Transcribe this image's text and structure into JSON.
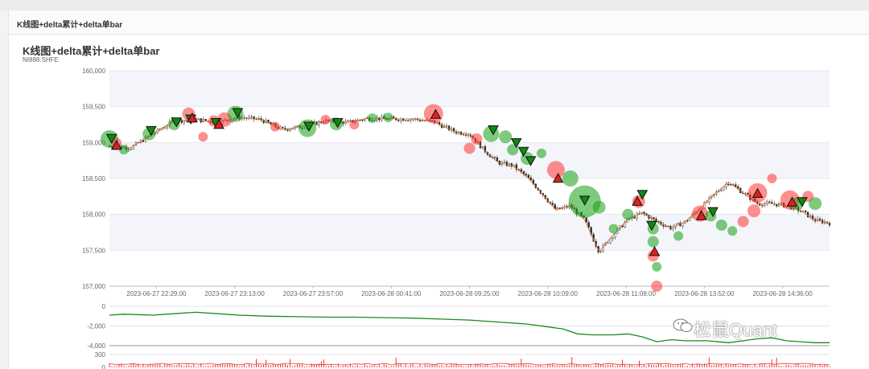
{
  "panel": {
    "title": "K线图+delta累计+delta单bar"
  },
  "chart_data": [
    {
      "type": "candlestick",
      "title": "K线图+delta累计+delta单bar",
      "subtitle": "NI888.SHFE",
      "ylim": [
        157000,
        160000
      ],
      "yticks": [
        "160,000",
        "159,500",
        "159,000",
        "158,500",
        "158,000",
        "157,500",
        "157,000"
      ],
      "xticks": [
        "2023-06-27 22:29:00",
        "2023-06-27 23:13:00",
        "2023-06-27 23:57:00",
        "2023-06-28 00:41:00",
        "2023-06-28 09:25:00",
        "2023-06-28 10:09:00",
        "2023-06-28 11:08:00",
        "2023-06-28 13:52:00",
        "2023-06-28 14:36:00"
      ],
      "price_path": [
        [
          0,
          158950
        ],
        [
          0.03,
          158930
        ],
        [
          0.06,
          159120
        ],
        [
          0.09,
          159300
        ],
        [
          0.12,
          159320
        ],
        [
          0.15,
          159280
        ],
        [
          0.18,
          159350
        ],
        [
          0.21,
          159320
        ],
        [
          0.24,
          159180
        ],
        [
          0.27,
          159230
        ],
        [
          0.3,
          159300
        ],
        [
          0.33,
          159280
        ],
        [
          0.36,
          159340
        ],
        [
          0.39,
          159330
        ],
        [
          0.42,
          159330
        ],
        [
          0.45,
          159290
        ],
        [
          0.48,
          159150
        ],
        [
          0.5,
          159120
        ],
        [
          0.52,
          158900
        ],
        [
          0.54,
          158720
        ],
        [
          0.56,
          158680
        ],
        [
          0.58,
          158520
        ],
        [
          0.6,
          158300
        ],
        [
          0.62,
          158060
        ],
        [
          0.64,
          158120
        ],
        [
          0.66,
          157920
        ],
        [
          0.68,
          157480
        ],
        [
          0.7,
          157720
        ],
        [
          0.72,
          157930
        ],
        [
          0.74,
          158020
        ],
        [
          0.76,
          157900
        ],
        [
          0.78,
          157810
        ],
        [
          0.8,
          157900
        ],
        [
          0.82,
          158080
        ],
        [
          0.84,
          158280
        ],
        [
          0.86,
          158450
        ],
        [
          0.88,
          158300
        ],
        [
          0.9,
          158150
        ],
        [
          0.92,
          158150
        ],
        [
          0.94,
          158120
        ],
        [
          0.96,
          158050
        ],
        [
          0.98,
          157920
        ],
        [
          1,
          157880
        ]
      ],
      "delta_bubbles": [
        {
          "x": 0.0,
          "price": 159050,
          "r": 11,
          "dir": "sell"
        },
        {
          "x": 0.01,
          "price": 159000,
          "r": 6,
          "dir": "buy"
        },
        {
          "x": 0.02,
          "price": 158900,
          "r": 6,
          "dir": "sell"
        },
        {
          "x": 0.055,
          "price": 159120,
          "r": 8,
          "dir": "sell"
        },
        {
          "x": 0.09,
          "price": 159250,
          "r": 7,
          "dir": "sell"
        },
        {
          "x": 0.11,
          "price": 159400,
          "r": 8,
          "dir": "buy"
        },
        {
          "x": 0.13,
          "price": 159080,
          "r": 6,
          "dir": "buy"
        },
        {
          "x": 0.145,
          "price": 159300,
          "r": 7,
          "dir": "buy"
        },
        {
          "x": 0.16,
          "price": 159320,
          "r": 9,
          "dir": "buy"
        },
        {
          "x": 0.175,
          "price": 159400,
          "r": 10,
          "dir": "sell"
        },
        {
          "x": 0.23,
          "price": 159220,
          "r": 6,
          "dir": "buy"
        },
        {
          "x": 0.275,
          "price": 159200,
          "r": 11,
          "dir": "sell"
        },
        {
          "x": 0.3,
          "price": 159320,
          "r": 6,
          "dir": "buy"
        },
        {
          "x": 0.315,
          "price": 159260,
          "r": 8,
          "dir": "sell"
        },
        {
          "x": 0.34,
          "price": 159250,
          "r": 6,
          "dir": "buy"
        },
        {
          "x": 0.365,
          "price": 159340,
          "r": 6,
          "dir": "sell"
        },
        {
          "x": 0.387,
          "price": 159350,
          "r": 6,
          "dir": "sell"
        },
        {
          "x": 0.45,
          "price": 159400,
          "r": 12,
          "dir": "buy"
        },
        {
          "x": 0.5,
          "price": 158920,
          "r": 7,
          "dir": "buy"
        },
        {
          "x": 0.51,
          "price": 159050,
          "r": 7,
          "dir": "buy"
        },
        {
          "x": 0.53,
          "price": 159120,
          "r": 10,
          "dir": "sell"
        },
        {
          "x": 0.55,
          "price": 159080,
          "r": 8,
          "dir": "sell"
        },
        {
          "x": 0.56,
          "price": 158900,
          "r": 7,
          "dir": "sell"
        },
        {
          "x": 0.58,
          "price": 158780,
          "r": 8,
          "dir": "sell"
        },
        {
          "x": 0.6,
          "price": 158850,
          "r": 6,
          "dir": "sell"
        },
        {
          "x": 0.62,
          "price": 158620,
          "r": 11,
          "dir": "buy"
        },
        {
          "x": 0.64,
          "price": 158500,
          "r": 10,
          "dir": "sell"
        },
        {
          "x": 0.66,
          "price": 158180,
          "r": 20,
          "dir": "sell"
        },
        {
          "x": 0.68,
          "price": 158100,
          "r": 8,
          "dir": "sell"
        },
        {
          "x": 0.7,
          "price": 157800,
          "r": 6,
          "dir": "sell"
        },
        {
          "x": 0.72,
          "price": 158000,
          "r": 7,
          "dir": "sell"
        },
        {
          "x": 0.735,
          "price": 158180,
          "r": 8,
          "dir": "buy"
        },
        {
          "x": 0.755,
          "price": 157800,
          "r": 7,
          "dir": "sell"
        },
        {
          "x": 0.755,
          "price": 157620,
          "r": 7,
          "dir": "sell"
        },
        {
          "x": 0.755,
          "price": 157420,
          "r": 7,
          "dir": "buy"
        },
        {
          "x": 0.76,
          "price": 157270,
          "r": 6,
          "dir": "sell"
        },
        {
          "x": 0.76,
          "price": 157000,
          "r": 7,
          "dir": "buy"
        },
        {
          "x": 0.79,
          "price": 157700,
          "r": 6,
          "dir": "sell"
        },
        {
          "x": 0.82,
          "price": 158010,
          "r": 10,
          "dir": "buy"
        },
        {
          "x": 0.835,
          "price": 157980,
          "r": 7,
          "dir": "sell"
        },
        {
          "x": 0.85,
          "price": 157850,
          "r": 7,
          "dir": "sell"
        },
        {
          "x": 0.865,
          "price": 157770,
          "r": 6,
          "dir": "sell"
        },
        {
          "x": 0.88,
          "price": 157900,
          "r": 7,
          "dir": "buy"
        },
        {
          "x": 0.895,
          "price": 158050,
          "r": 8,
          "dir": "buy"
        },
        {
          "x": 0.9,
          "price": 158300,
          "r": 12,
          "dir": "buy"
        },
        {
          "x": 0.92,
          "price": 158500,
          "r": 6,
          "dir": "buy"
        },
        {
          "x": 0.945,
          "price": 158200,
          "r": 12,
          "dir": "buy"
        },
        {
          "x": 0.955,
          "price": 158150,
          "r": 8,
          "dir": "sell"
        },
        {
          "x": 0.97,
          "price": 158250,
          "r": 7,
          "dir": "buy"
        },
        {
          "x": 0.98,
          "price": 158150,
          "r": 8,
          "dir": "sell"
        }
      ],
      "markers": [
        {
          "x": 0.003,
          "price": 159060,
          "dir": "down"
        },
        {
          "x": 0.01,
          "price": 158960,
          "dir": "up"
        },
        {
          "x": 0.058,
          "price": 159170,
          "dir": "down"
        },
        {
          "x": 0.093,
          "price": 159290,
          "dir": "down"
        },
        {
          "x": 0.113,
          "price": 159330,
          "dir": "down"
        },
        {
          "x": 0.115,
          "price": 159340,
          "dir": "up"
        },
        {
          "x": 0.148,
          "price": 159280,
          "dir": "down"
        },
        {
          "x": 0.152,
          "price": 159250,
          "dir": "up"
        },
        {
          "x": 0.178,
          "price": 159420,
          "dir": "down"
        },
        {
          "x": 0.277,
          "price": 159230,
          "dir": "down"
        },
        {
          "x": 0.317,
          "price": 159280,
          "dir": "down"
        },
        {
          "x": 0.453,
          "price": 159390,
          "dir": "up"
        },
        {
          "x": 0.533,
          "price": 159180,
          "dir": "down"
        },
        {
          "x": 0.565,
          "price": 159000,
          "dir": "down"
        },
        {
          "x": 0.575,
          "price": 158880,
          "dir": "down"
        },
        {
          "x": 0.585,
          "price": 158750,
          "dir": "down"
        },
        {
          "x": 0.623,
          "price": 158500,
          "dir": "up"
        },
        {
          "x": 0.66,
          "price": 158200,
          "dir": "down"
        },
        {
          "x": 0.733,
          "price": 158180,
          "dir": "up"
        },
        {
          "x": 0.74,
          "price": 158280,
          "dir": "down"
        },
        {
          "x": 0.753,
          "price": 157850,
          "dir": "down"
        },
        {
          "x": 0.757,
          "price": 157480,
          "dir": "up"
        },
        {
          "x": 0.822,
          "price": 157980,
          "dir": "up"
        },
        {
          "x": 0.838,
          "price": 158040,
          "dir": "down"
        },
        {
          "x": 0.9,
          "price": 158290,
          "dir": "up"
        },
        {
          "x": 0.948,
          "price": 158170,
          "dir": "up"
        },
        {
          "x": 0.962,
          "price": 158180,
          "dir": "down"
        }
      ]
    },
    {
      "type": "line",
      "ylim": [
        -4000,
        0
      ],
      "yticks": [
        "0",
        "-2,000",
        "-4,000"
      ],
      "series": [
        {
          "color": "#1a8a1a",
          "values": [
            [
              0,
              -900
            ],
            [
              0.02,
              -800
            ],
            [
              0.06,
              -900
            ],
            [
              0.09,
              -750
            ],
            [
              0.12,
              -600
            ],
            [
              0.15,
              -750
            ],
            [
              0.18,
              -900
            ],
            [
              0.22,
              -1000
            ],
            [
              0.26,
              -1050
            ],
            [
              0.3,
              -1100
            ],
            [
              0.34,
              -1100
            ],
            [
              0.38,
              -1150
            ],
            [
              0.42,
              -1200
            ],
            [
              0.46,
              -1300
            ],
            [
              0.5,
              -1400
            ],
            [
              0.54,
              -1600
            ],
            [
              0.58,
              -1800
            ],
            [
              0.61,
              -2100
            ],
            [
              0.63,
              -2300
            ],
            [
              0.65,
              -2800
            ],
            [
              0.67,
              -2900
            ],
            [
              0.7,
              -2900
            ],
            [
              0.72,
              -2800
            ],
            [
              0.74,
              -3100
            ],
            [
              0.76,
              -3600
            ],
            [
              0.78,
              -3400
            ],
            [
              0.8,
              -3500
            ],
            [
              0.83,
              -3500
            ],
            [
              0.86,
              -3700
            ],
            [
              0.88,
              -3500
            ],
            [
              0.9,
              -3300
            ],
            [
              0.92,
              -3200
            ],
            [
              0.94,
              -3500
            ],
            [
              0.96,
              -3600
            ],
            [
              0.98,
              -3700
            ],
            [
              1,
              -3700
            ]
          ]
        }
      ]
    },
    {
      "type": "bar",
      "ylim": [
        0,
        300
      ],
      "yticks": [
        "300",
        "0"
      ]
    }
  ],
  "watermark": {
    "text": "松鼠Quant"
  },
  "colors": {
    "buy": "#ff3333",
    "sell": "#14a014",
    "band": "#f4f5fa",
    "ma": "#e07020",
    "delta": "#1a8a1a",
    "bars": "#ee3333"
  }
}
